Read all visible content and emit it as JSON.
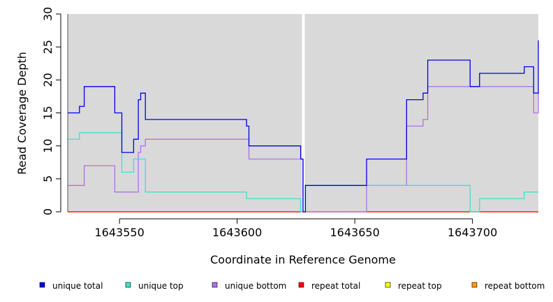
{
  "chart_data": {
    "type": "line",
    "step": true,
    "xlabel": "Coordinate in Reference Genome",
    "ylabel": "Read Coverage Depth",
    "xlim": [
      1643528,
      1643728
    ],
    "ylim": [
      0,
      30
    ],
    "x_ticks": [
      1643550,
      1643600,
      1643650,
      1643700
    ],
    "y_ticks": [
      0,
      5,
      10,
      15,
      20,
      25,
      30
    ],
    "grid": false,
    "background": "#d9d9d9",
    "gap_marker_x": 1643628,
    "legend_position": "bottom",
    "series": [
      {
        "name": "unique total",
        "color": "#0000ee",
        "points": [
          [
            1643528,
            15
          ],
          [
            1643533,
            16
          ],
          [
            1643535,
            19
          ],
          [
            1643548,
            15
          ],
          [
            1643551,
            9
          ],
          [
            1643556,
            11
          ],
          [
            1643558,
            17
          ],
          [
            1643559,
            18
          ],
          [
            1643561,
            14
          ],
          [
            1643604,
            13
          ],
          [
            1643605,
            10
          ],
          [
            1643627,
            8
          ],
          [
            1643628,
            0
          ],
          [
            1643629,
            4
          ],
          [
            1643655,
            8
          ],
          [
            1643672,
            17
          ],
          [
            1643679,
            18
          ],
          [
            1643681,
            23
          ],
          [
            1643699,
            19
          ],
          [
            1643703,
            21
          ],
          [
            1643722,
            22
          ],
          [
            1643726,
            18
          ],
          [
            1643728,
            26
          ]
        ]
      },
      {
        "name": "unique top",
        "color": "#40e0d0",
        "points": [
          [
            1643528,
            11
          ],
          [
            1643533,
            12
          ],
          [
            1643551,
            6
          ],
          [
            1643556,
            8
          ],
          [
            1643561,
            3
          ],
          [
            1643604,
            2
          ],
          [
            1643627,
            0
          ],
          [
            1643629,
            4
          ],
          [
            1643699,
            0
          ],
          [
            1643703,
            2
          ],
          [
            1643722,
            3
          ],
          [
            1643728,
            3
          ]
        ]
      },
      {
        "name": "unique bottom",
        "color": "#b070e8",
        "points": [
          [
            1643528,
            4
          ],
          [
            1643535,
            7
          ],
          [
            1643548,
            3
          ],
          [
            1643558,
            9
          ],
          [
            1643559,
            10
          ],
          [
            1643561,
            11
          ],
          [
            1643605,
            8
          ],
          [
            1643627,
            8
          ],
          [
            1643628,
            0
          ],
          [
            1643655,
            4
          ],
          [
            1643672,
            13
          ],
          [
            1643679,
            14
          ],
          [
            1643681,
            19
          ],
          [
            1643726,
            15
          ],
          [
            1643728,
            18
          ]
        ]
      },
      {
        "name": "repeat total",
        "color": "#ff0000",
        "points": [
          [
            1643528,
            0
          ],
          [
            1643728,
            0
          ]
        ]
      },
      {
        "name": "repeat top",
        "color": "#ffff00",
        "points": [
          [
            1643528,
            0
          ],
          [
            1643728,
            0
          ]
        ]
      },
      {
        "name": "repeat bottom",
        "color": "#ff9900",
        "points": [
          [
            1643528,
            0
          ],
          [
            1643728,
            0
          ]
        ]
      }
    ]
  }
}
